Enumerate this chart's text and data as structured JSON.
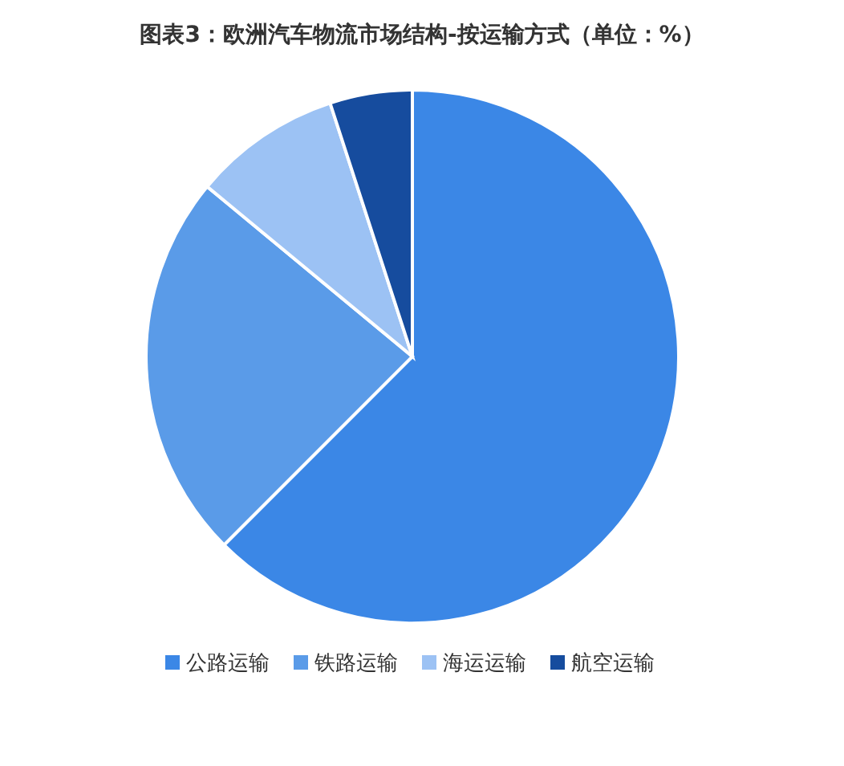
{
  "chart_data": {
    "type": "pie",
    "title": "图表3：欧洲汽车物流市场结构-按运输方式（单位：%）",
    "categories": [
      "公路运输",
      "铁路运输",
      "海运运输",
      "航空运输"
    ],
    "values": [
      62.5,
      23.5,
      9,
      5
    ],
    "colors": [
      "#3b87e6",
      "#5a9be8",
      "#9cc2f4",
      "#164c9e"
    ],
    "legend": "bottom"
  }
}
